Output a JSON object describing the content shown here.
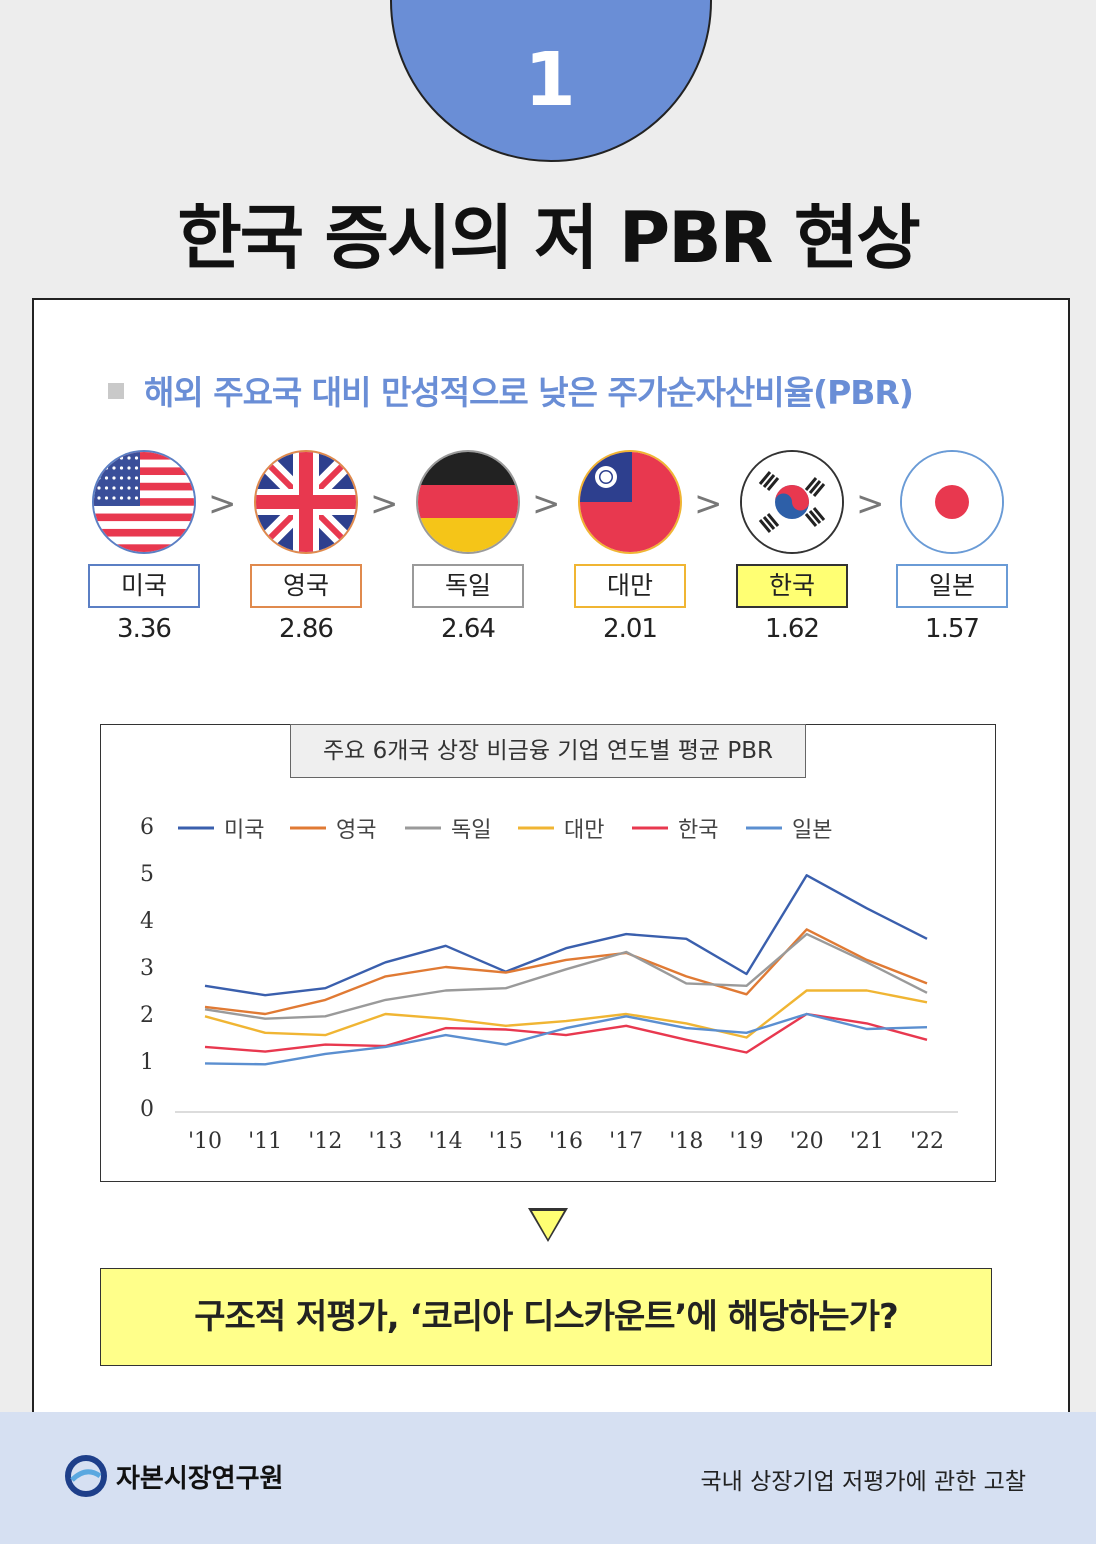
{
  "header": {
    "number": "1",
    "title": "한국 증시의 저 PBR 현상"
  },
  "subhead": "해외 주요국 대비 만성적으로 낮은 주가순자산비율(PBR)",
  "comparison": {
    "separator": ">",
    "countries": [
      {
        "name": "미국",
        "value": "3.36",
        "flag": "us-flag-icon",
        "border": "#5b7fc4",
        "fill": "#ffffff"
      },
      {
        "name": "영국",
        "value": "2.86",
        "flag": "uk-flag-icon",
        "border": "#e08a4d",
        "fill": "#ffffff"
      },
      {
        "name": "독일",
        "value": "2.64",
        "flag": "germany-flag-icon",
        "border": "#9a9a9a",
        "fill": "#ffffff"
      },
      {
        "name": "대만",
        "value": "2.01",
        "flag": "taiwan-flag-icon",
        "border": "#f0b533",
        "fill": "#ffffff"
      },
      {
        "name": "한국",
        "value": "1.62",
        "flag": "korea-flag-icon",
        "border": "#333333",
        "fill": "#ffff73"
      },
      {
        "name": "일본",
        "value": "1.57",
        "flag": "japan-flag-icon",
        "border": "#6a9bd6",
        "fill": "#ffffff"
      }
    ]
  },
  "chart_data": {
    "type": "line",
    "title": "주요 6개국 상장 비금융 기업 연도별 평균 PBR",
    "categories": [
      "'10",
      "'11",
      "'12",
      "'13",
      "'14",
      "'15",
      "'16",
      "'17",
      "'18",
      "'19",
      "'20",
      "'21",
      "'22"
    ],
    "ylim": [
      0,
      6
    ],
    "yticks": [
      0,
      1,
      2,
      3,
      4,
      5,
      6
    ],
    "grid": false,
    "legend": "top",
    "series": [
      {
        "name": "미국",
        "color": "#3a5fad",
        "values": [
          2.6,
          2.4,
          2.55,
          3.1,
          3.45,
          2.9,
          3.4,
          3.7,
          3.6,
          2.85,
          4.95,
          4.25,
          3.6
        ]
      },
      {
        "name": "영국",
        "color": "#e07a34",
        "values": [
          2.15,
          2.0,
          2.3,
          2.8,
          3.0,
          2.88,
          3.15,
          3.3,
          2.8,
          2.42,
          3.8,
          3.15,
          2.65
        ]
      },
      {
        "name": "독일",
        "color": "#9a9a9a",
        "values": [
          2.1,
          1.9,
          1.95,
          2.3,
          2.5,
          2.55,
          2.95,
          3.32,
          2.65,
          2.6,
          3.7,
          3.1,
          2.45
        ]
      },
      {
        "name": "대만",
        "color": "#f0b533",
        "values": [
          1.95,
          1.6,
          1.55,
          2.0,
          1.9,
          1.75,
          1.85,
          2.0,
          1.8,
          1.5,
          2.5,
          2.5,
          2.25
        ]
      },
      {
        "name": "한국",
        "color": "#e8384f",
        "values": [
          1.3,
          1.2,
          1.35,
          1.32,
          1.7,
          1.67,
          1.55,
          1.75,
          1.45,
          1.18,
          2.0,
          1.8,
          1.45
        ]
      },
      {
        "name": "일본",
        "color": "#5b8fd0",
        "values": [
          0.95,
          0.93,
          1.15,
          1.3,
          1.55,
          1.35,
          1.7,
          1.95,
          1.7,
          1.6,
          2.0,
          1.68,
          1.72
        ]
      }
    ]
  },
  "callout": "구조적 저평가, ‘코리아 디스카운트’에 해당하는가?",
  "footer": {
    "org": "자본시장연구원",
    "report": "국내 상장기업 저평가에 관한 고찰"
  }
}
